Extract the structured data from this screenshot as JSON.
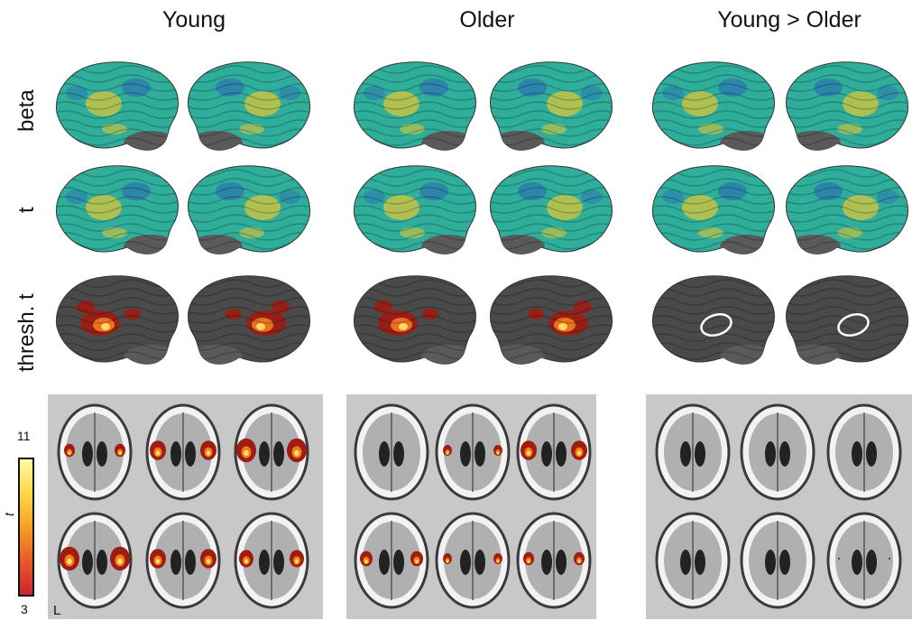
{
  "columns": {
    "young": "Young",
    "older": "Older",
    "contrast": "Young > Older"
  },
  "rows": {
    "beta": "beta",
    "t": "t",
    "thresh": "thresh. t"
  },
  "colorbar": {
    "max": "11",
    "min": "3",
    "label": "t"
  },
  "orientation_label": "L",
  "colors": {
    "surface_teal": "#2fae9c",
    "surface_yellow": "#d9c63a",
    "surface_blue": "#2c6fb3",
    "surface_gray": "#5a5a5a",
    "activation_red": "#9f1c12",
    "activation_orange": "#f47a1f",
    "activation_yellow": "#ffe36a",
    "panel_background": "#c8c8c8"
  }
}
